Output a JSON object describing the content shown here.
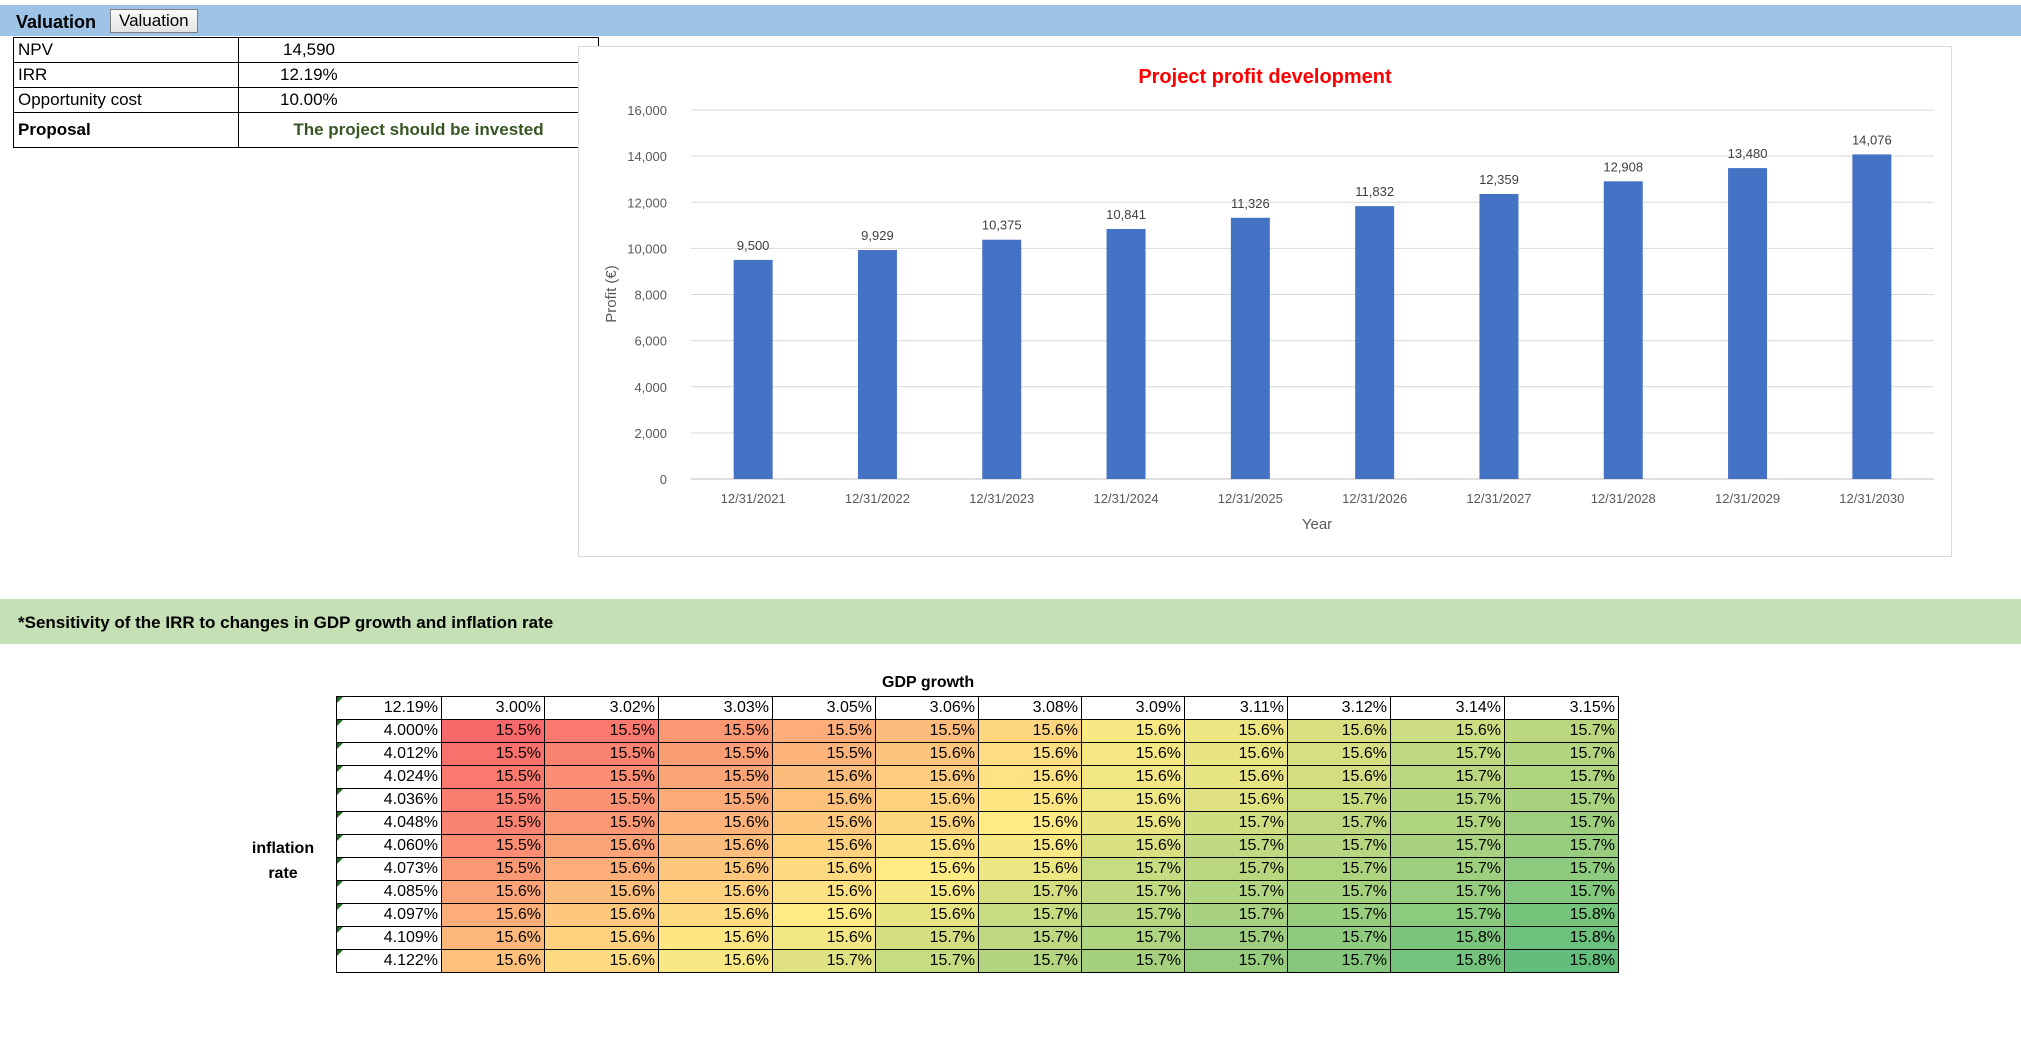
{
  "header": {
    "title": "Valuation",
    "button_label": "Valuation"
  },
  "valuation": {
    "rows": [
      {
        "label": "NPV",
        "value": "14,590"
      },
      {
        "label": "IRR",
        "value": "12.19%"
      },
      {
        "label": "Opportunity cost",
        "value": "10.00%"
      }
    ],
    "proposal": {
      "label": "Proposal",
      "value": "The project should be invested"
    }
  },
  "chart_data": {
    "type": "bar",
    "title": "Project profit development",
    "xlabel": "Year",
    "ylabel": "Profit (€)",
    "categories": [
      "12/31/2021",
      "12/31/2022",
      "12/31/2023",
      "12/31/2024",
      "12/31/2025",
      "12/31/2026",
      "12/31/2027",
      "12/31/2028",
      "12/31/2029",
      "12/31/2030"
    ],
    "values": [
      9500,
      9929,
      10375,
      10841,
      11326,
      11832,
      12359,
      12908,
      13480,
      14076
    ],
    "value_labels": [
      "9,500",
      "9,929",
      "10,375",
      "10,841",
      "11,326",
      "11,832",
      "12,359",
      "12,908",
      "13,480",
      "14,076"
    ],
    "yticks": [
      "0",
      "2,000",
      "4,000",
      "6,000",
      "8,000",
      "10,000",
      "12,000",
      "14,000",
      "16,000"
    ],
    "ylim": [
      0,
      16000
    ],
    "grid": true,
    "bar_color": "#4472c4",
    "title_color": "#ff0000"
  },
  "sensitivity": {
    "title": "*Sensitivity of the IRR to changes in GDP growth and inflation rate",
    "col_header_label": "GDP growth",
    "row_header_label_line1": "inflation",
    "row_header_label_line2": "rate",
    "corner": "12.19%",
    "gdp": [
      "3.00%",
      "3.02%",
      "3.03%",
      "3.05%",
      "3.06%",
      "3.08%",
      "3.09%",
      "3.11%",
      "3.12%",
      "3.14%",
      "3.15%"
    ],
    "inflation": [
      "4.000%",
      "4.012%",
      "4.024%",
      "4.036%",
      "4.048%",
      "4.060%",
      "4.073%",
      "4.085%",
      "4.097%",
      "4.109%",
      "4.122%"
    ],
    "values": [
      [
        "15.5%",
        "15.5%",
        "15.5%",
        "15.5%",
        "15.5%",
        "15.6%",
        "15.6%",
        "15.6%",
        "15.6%",
        "15.6%",
        "15.7%"
      ],
      [
        "15.5%",
        "15.5%",
        "15.5%",
        "15.5%",
        "15.6%",
        "15.6%",
        "15.6%",
        "15.6%",
        "15.6%",
        "15.7%",
        "15.7%"
      ],
      [
        "15.5%",
        "15.5%",
        "15.5%",
        "15.6%",
        "15.6%",
        "15.6%",
        "15.6%",
        "15.6%",
        "15.6%",
        "15.7%",
        "15.7%"
      ],
      [
        "15.5%",
        "15.5%",
        "15.5%",
        "15.6%",
        "15.6%",
        "15.6%",
        "15.6%",
        "15.6%",
        "15.7%",
        "15.7%",
        "15.7%"
      ],
      [
        "15.5%",
        "15.5%",
        "15.6%",
        "15.6%",
        "15.6%",
        "15.6%",
        "15.6%",
        "15.7%",
        "15.7%",
        "15.7%",
        "15.7%"
      ],
      [
        "15.5%",
        "15.6%",
        "15.6%",
        "15.6%",
        "15.6%",
        "15.6%",
        "15.6%",
        "15.7%",
        "15.7%",
        "15.7%",
        "15.7%"
      ],
      [
        "15.5%",
        "15.6%",
        "15.6%",
        "15.6%",
        "15.6%",
        "15.6%",
        "15.7%",
        "15.7%",
        "15.7%",
        "15.7%",
        "15.7%"
      ],
      [
        "15.6%",
        "15.6%",
        "15.6%",
        "15.6%",
        "15.6%",
        "15.7%",
        "15.7%",
        "15.7%",
        "15.7%",
        "15.7%",
        "15.7%"
      ],
      [
        "15.6%",
        "15.6%",
        "15.6%",
        "15.6%",
        "15.6%",
        "15.7%",
        "15.7%",
        "15.7%",
        "15.7%",
        "15.7%",
        "15.8%"
      ],
      [
        "15.6%",
        "15.6%",
        "15.6%",
        "15.6%",
        "15.7%",
        "15.7%",
        "15.7%",
        "15.7%",
        "15.7%",
        "15.8%",
        "15.8%"
      ],
      [
        "15.6%",
        "15.6%",
        "15.6%",
        "15.7%",
        "15.7%",
        "15.7%",
        "15.7%",
        "15.7%",
        "15.7%",
        "15.8%",
        "15.8%"
      ]
    ],
    "heat_levels": [
      [
        0.0,
        0.06,
        0.18,
        0.26,
        0.32,
        0.42,
        0.52,
        0.56,
        0.62,
        0.66,
        0.72
      ],
      [
        0.03,
        0.1,
        0.2,
        0.29,
        0.35,
        0.45,
        0.53,
        0.57,
        0.63,
        0.7,
        0.74
      ],
      [
        0.06,
        0.14,
        0.23,
        0.32,
        0.38,
        0.47,
        0.54,
        0.58,
        0.64,
        0.72,
        0.76
      ],
      [
        0.08,
        0.16,
        0.25,
        0.34,
        0.4,
        0.48,
        0.55,
        0.6,
        0.68,
        0.74,
        0.78
      ],
      [
        0.1,
        0.18,
        0.28,
        0.36,
        0.42,
        0.5,
        0.57,
        0.65,
        0.71,
        0.76,
        0.81
      ],
      [
        0.14,
        0.22,
        0.32,
        0.4,
        0.46,
        0.52,
        0.62,
        0.7,
        0.73,
        0.78,
        0.83
      ],
      [
        0.18,
        0.26,
        0.36,
        0.44,
        0.5,
        0.56,
        0.68,
        0.72,
        0.76,
        0.81,
        0.86
      ],
      [
        0.22,
        0.32,
        0.4,
        0.46,
        0.52,
        0.64,
        0.7,
        0.75,
        0.79,
        0.84,
        0.9
      ],
      [
        0.26,
        0.36,
        0.44,
        0.5,
        0.58,
        0.68,
        0.73,
        0.78,
        0.83,
        0.87,
        0.94
      ],
      [
        0.3,
        0.4,
        0.48,
        0.54,
        0.64,
        0.71,
        0.76,
        0.81,
        0.86,
        0.92,
        0.97
      ],
      [
        0.34,
        0.44,
        0.52,
        0.6,
        0.68,
        0.74,
        0.79,
        0.84,
        0.89,
        0.95,
        1.0
      ]
    ],
    "scale_colors": {
      "low": "#f8696b",
      "mid": "#ffeb84",
      "high": "#63be7b"
    }
  }
}
